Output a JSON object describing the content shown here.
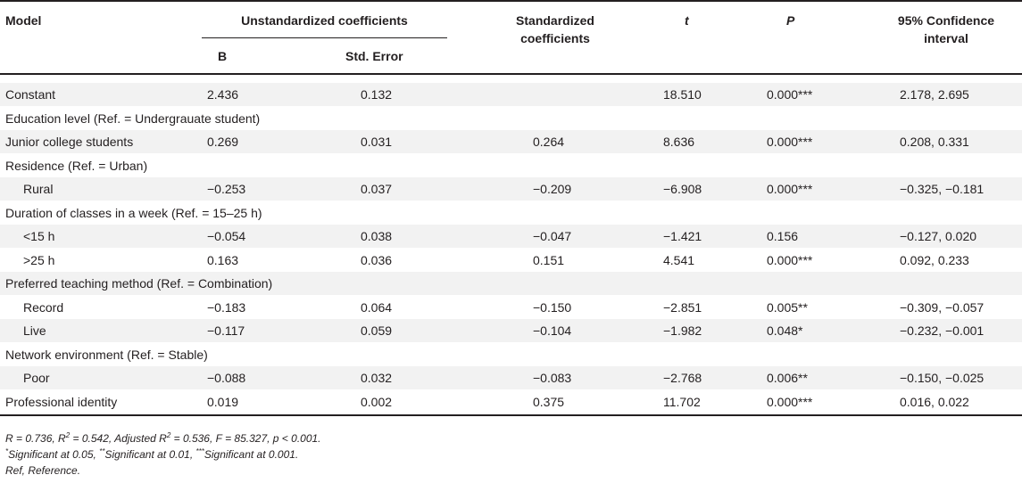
{
  "header": {
    "model": "Model",
    "unstd": "Unstandardized coefficients",
    "b": "B",
    "se": "Std. Error",
    "std_line1": "Standardized",
    "std_line2": "coefficients",
    "t": "t",
    "p": "P",
    "ci_line1": "95% Confidence",
    "ci_line2": "interval"
  },
  "rows": [
    {
      "label": "Constant",
      "b": "2.436",
      "se": "0.132",
      "std": "",
      "t": "18.510",
      "p": "0.000***",
      "ci": "2.178, 2.695"
    },
    {
      "label": "Education level (Ref. = Undergrauate student)",
      "group": true
    },
    {
      "label": "Junior college students",
      "b": "0.269",
      "se": "0.031",
      "std": "0.264",
      "t": "8.636",
      "p": "0.000***",
      "ci": "0.208, 0.331"
    },
    {
      "label": "Residence (Ref. = Urban)",
      "group": true
    },
    {
      "label": "Rural",
      "indent": true,
      "b": "−0.253",
      "se": "0.037",
      "std": "−0.209",
      "t": "−6.908",
      "p": "0.000***",
      "ci": "−0.325, −0.181"
    },
    {
      "label": "Duration of classes in a week (Ref. = 15–25 h)",
      "group": true
    },
    {
      "label": "<15 h",
      "indent": true,
      "b": "−0.054",
      "se": "0.038",
      "std": "−0.047",
      "t": "−1.421",
      "p": "0.156",
      "ci": "−0.127, 0.020"
    },
    {
      "label": ">25 h",
      "indent": true,
      "b": "0.163",
      "se": "0.036",
      "std": "0.151",
      "t": "4.541",
      "p": "0.000***",
      "ci": "0.092, 0.233"
    },
    {
      "label": "Preferred teaching method (Ref. = Combination)",
      "group": true
    },
    {
      "label": "Record",
      "indent": true,
      "b": "−0.183",
      "se": "0.064",
      "std": "−0.150",
      "t": "−2.851",
      "p": "0.005**",
      "ci": "−0.309, −0.057"
    },
    {
      "label": "Live",
      "indent": true,
      "b": "−0.117",
      "se": "0.059",
      "std": "−0.104",
      "t": "−1.982",
      "p": "0.048*",
      "ci": "−0.232, −0.001"
    },
    {
      "label": "Network environment (Ref. = Stable)",
      "group": true
    },
    {
      "label": "Poor",
      "indent": true,
      "b": "−0.088",
      "se": "0.032",
      "std": "−0.083",
      "t": "−2.768",
      "p": "0.006**",
      "ci": "−0.150, −0.025"
    },
    {
      "label": "Professional identity",
      "b": "0.019",
      "se": "0.002",
      "std": "0.375",
      "t": "11.702",
      "p": "0.000***",
      "ci": "0.016, 0.022"
    }
  ],
  "footnotes": {
    "stats_a": "R = 0.736, R",
    "stats_sup": "2",
    "stats_b": " = 0.542, Adjusted R",
    "stats_sup2": "2",
    "stats_c": " = 0.536, F = 85.327, p < 0.001.",
    "sig_a": "*",
    "sig_b": "Significant at 0.05, ",
    "sig_c": "**",
    "sig_d": "Significant at 0.01, ",
    "sig_e": "***",
    "sig_f": "Significant at 0.001.",
    "ref": "Ref, Reference."
  },
  "colors": {
    "shade": "#f2f2f2",
    "text": "#231f20"
  }
}
